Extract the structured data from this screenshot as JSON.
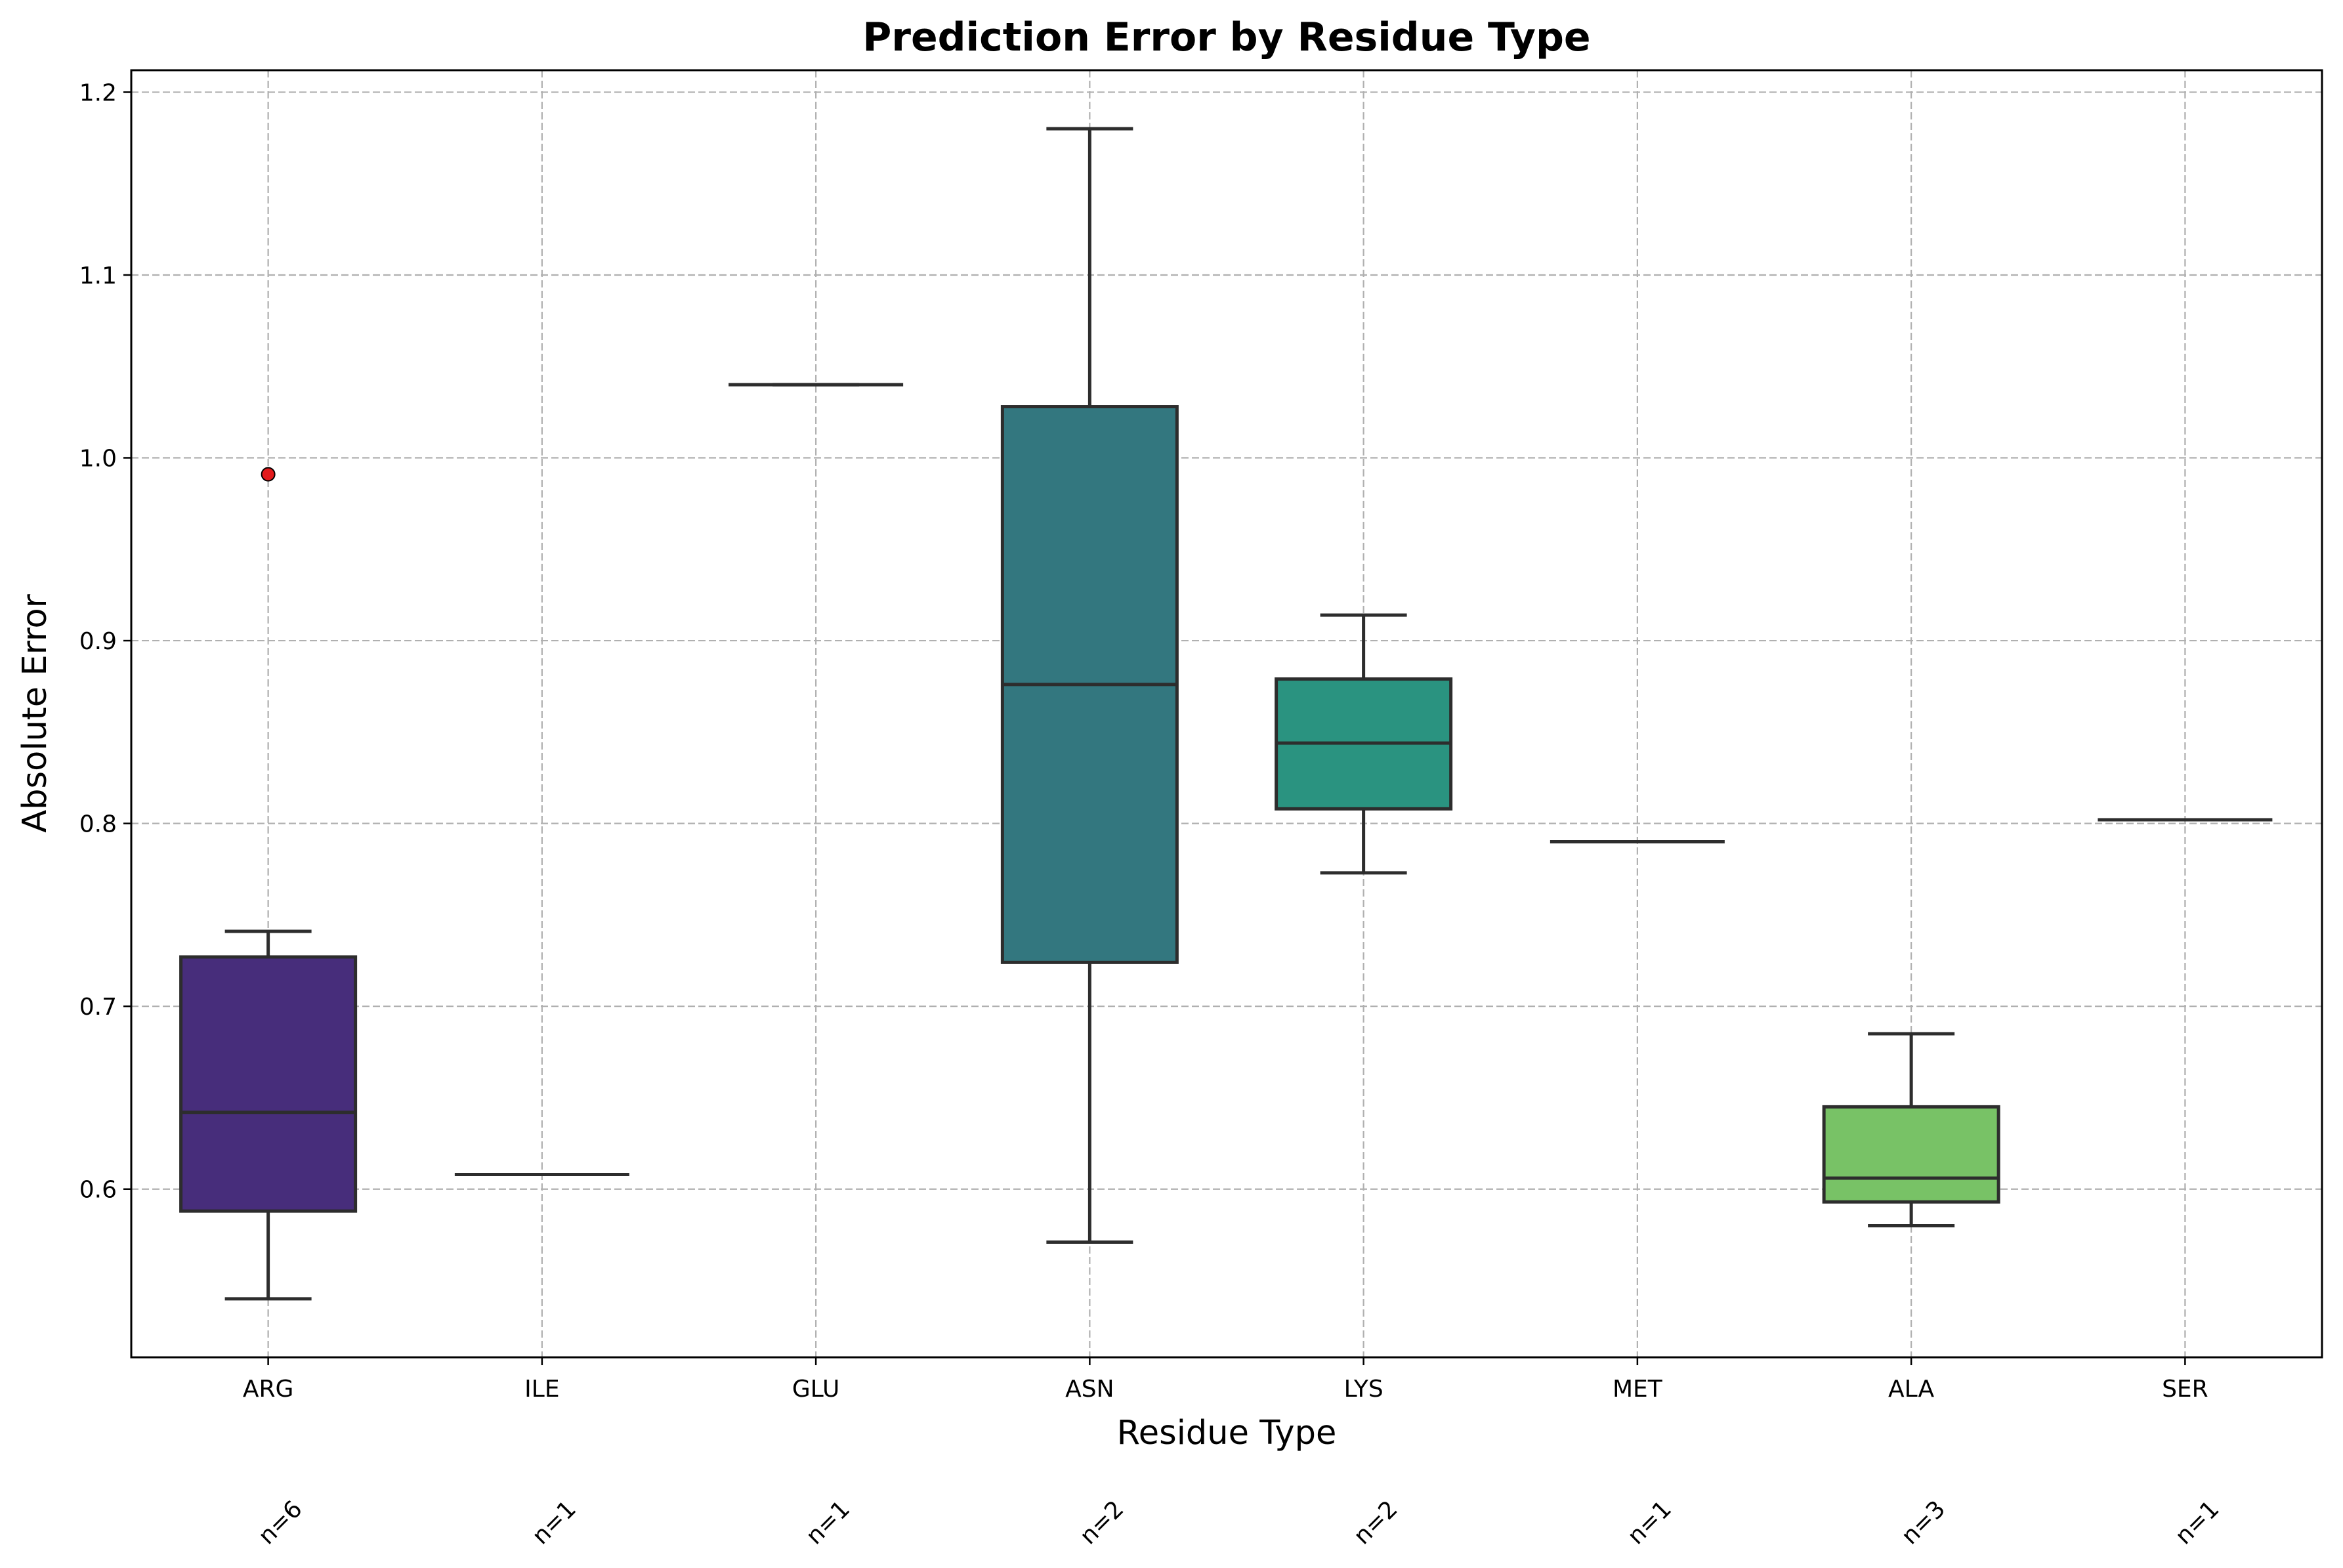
{
  "chart_data": {
    "type": "box",
    "title": "Prediction Error by Residue Type",
    "xlabel": "Residue Type",
    "ylabel": "Absolute Error",
    "ylim": [
      0.508,
      1.212
    ],
    "yticks": [
      0.6,
      0.7,
      0.8,
      0.9,
      1.0,
      1.1,
      1.2
    ],
    "ytick_labels": [
      "0.6",
      "0.7",
      "0.8",
      "0.9",
      "1.0",
      "1.1",
      "1.2"
    ],
    "grid": true,
    "grid_style": "dashed",
    "categories": [
      "ARG",
      "ILE",
      "GLU",
      "ASN",
      "LYS",
      "MET",
      "ALA",
      "SER"
    ],
    "counts": [
      "n=6",
      "n=1",
      "n=1",
      "n=2",
      "n=2",
      "n=1",
      "n=3",
      "n=1"
    ],
    "boxes": [
      {
        "category": "ARG",
        "whisker_low": 0.54,
        "q1": 0.588,
        "median": 0.642,
        "q3": 0.727,
        "whisker_high": 0.741,
        "outliers": [
          0.991
        ],
        "color": "#472d7b"
      },
      {
        "category": "ILE",
        "whisker_low": 0.608,
        "q1": 0.608,
        "median": 0.608,
        "q3": 0.608,
        "whisker_high": 0.608,
        "outliers": [],
        "color": "#3b528b"
      },
      {
        "category": "GLU",
        "whisker_low": 1.04,
        "q1": 1.04,
        "median": 1.04,
        "q3": 1.04,
        "whisker_high": 1.04,
        "outliers": [],
        "color": "#2c728e"
      },
      {
        "category": "ASN",
        "whisker_low": 0.571,
        "q1": 0.724,
        "median": 0.876,
        "q3": 1.028,
        "whisker_high": 1.18,
        "outliers": [],
        "color": "#33777f"
      },
      {
        "category": "LYS",
        "whisker_low": 0.773,
        "q1": 0.808,
        "median": 0.844,
        "q3": 0.879,
        "whisker_high": 0.914,
        "outliers": [],
        "color": "#2a9380"
      },
      {
        "category": "MET",
        "whisker_low": 0.79,
        "q1": 0.79,
        "median": 0.79,
        "q3": 0.79,
        "whisker_high": 0.79,
        "outliers": [],
        "color": "#27ad81"
      },
      {
        "category": "ALA",
        "whisker_low": 0.58,
        "q1": 0.593,
        "median": 0.606,
        "q3": 0.645,
        "whisker_high": 0.685,
        "outliers": [],
        "color": "#78c266"
      },
      {
        "category": "SER",
        "whisker_low": 0.802,
        "q1": 0.802,
        "median": 0.802,
        "q3": 0.802,
        "whisker_high": 0.802,
        "outliers": [],
        "color": "#aadc32"
      }
    ],
    "outlier_color": "#e31a1c",
    "box_edge_color": "#2d2d2d"
  }
}
